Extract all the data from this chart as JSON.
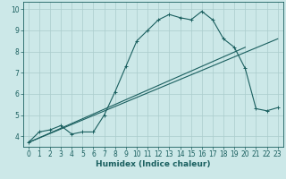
{
  "xlabel": "Humidex (Indice chaleur)",
  "bg_color": "#cce8e8",
  "grid_color": "#aacccc",
  "line_color": "#1a5f5f",
  "xlim": [
    -0.5,
    23.5
  ],
  "ylim": [
    3.5,
    10.35
  ],
  "xticks": [
    0,
    1,
    2,
    3,
    4,
    5,
    6,
    7,
    8,
    9,
    10,
    11,
    12,
    13,
    14,
    15,
    16,
    17,
    18,
    19,
    20,
    21,
    22,
    23
  ],
  "yticks": [
    4,
    5,
    6,
    7,
    8,
    9,
    10
  ],
  "line1_x": [
    0,
    1,
    2,
    3,
    4,
    5,
    6,
    7,
    8,
    9,
    10,
    11,
    12,
    13,
    14,
    15,
    16,
    17,
    18,
    19,
    20,
    21,
    22,
    23
  ],
  "line1_y": [
    3.7,
    4.2,
    4.3,
    4.5,
    4.1,
    4.2,
    4.2,
    5.0,
    6.1,
    7.3,
    8.5,
    9.0,
    9.5,
    9.75,
    9.6,
    9.5,
    9.9,
    9.5,
    8.6,
    8.2,
    7.2,
    5.3,
    5.2,
    5.35
  ],
  "line2_x": [
    0,
    23
  ],
  "line2_y": [
    3.7,
    8.6
  ],
  "line3_x": [
    0,
    20
  ],
  "line3_y": [
    3.7,
    8.2
  ],
  "marker_size": 3.0,
  "tick_fontsize": 5.5,
  "xlabel_fontsize": 6.5
}
